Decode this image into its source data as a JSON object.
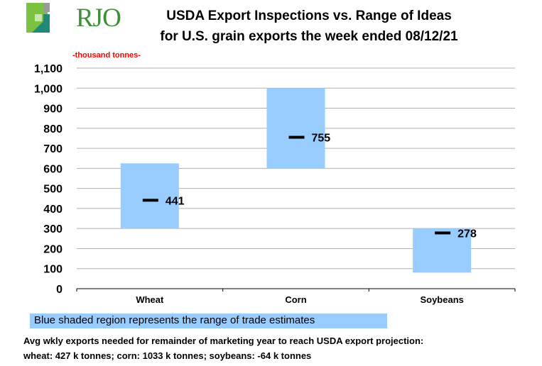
{
  "logo": {
    "text": "RJO",
    "colors": {
      "green": "#7cc242",
      "grey": "#9a9a9a",
      "teal": "#1f8a78"
    }
  },
  "title": {
    "line1": "USDA Export Inspections vs. Range of Ideas",
    "line2": "for U.S. grain exports the week ended 08/12/21"
  },
  "unit_label": "-thousand  tonnes-",
  "legend": {
    "text": "Blue shaded region represents the range of trade estimates",
    "color": "#99ccff"
  },
  "notes": {
    "line1": "Avg wkly exports needed for remainder of marketing year to reach USDA export projection:",
    "line2": "wheat: 427 k tonnes; corn: 1033 k tonnes; soybeans: -64 k tonnes"
  },
  "chart_data": {
    "type": "bar",
    "subtype": "floating-range-with-marker",
    "title": "USDA Export Inspections vs. Range of Ideas for U.S. grain exports the week ended 08/12/21",
    "ylabel": "-thousand  tonnes-",
    "xlabel": "",
    "ylim": [
      0,
      1100
    ],
    "yticks": [
      0,
      100,
      200,
      300,
      400,
      500,
      600,
      700,
      800,
      900,
      1000,
      1100
    ],
    "ytick_labels": [
      "0",
      "100",
      "200",
      "300",
      "400",
      "500",
      "600",
      "700",
      "800",
      "900",
      "1,000",
      "1,100"
    ],
    "grid": true,
    "categories": [
      "Wheat",
      "Corn",
      "Soybeans"
    ],
    "series": [
      {
        "name": "Range of trade estimates (low)",
        "values": [
          300,
          600,
          80
        ]
      },
      {
        "name": "Range of trade estimates (high)",
        "values": [
          625,
          1000,
          300
        ]
      },
      {
        "name": "USDA export inspections",
        "values": [
          441,
          755,
          278
        ]
      }
    ],
    "data_labels": [
      "441",
      "755",
      "278"
    ],
    "range_color": "#99ccff",
    "marker_color": "#000000"
  }
}
